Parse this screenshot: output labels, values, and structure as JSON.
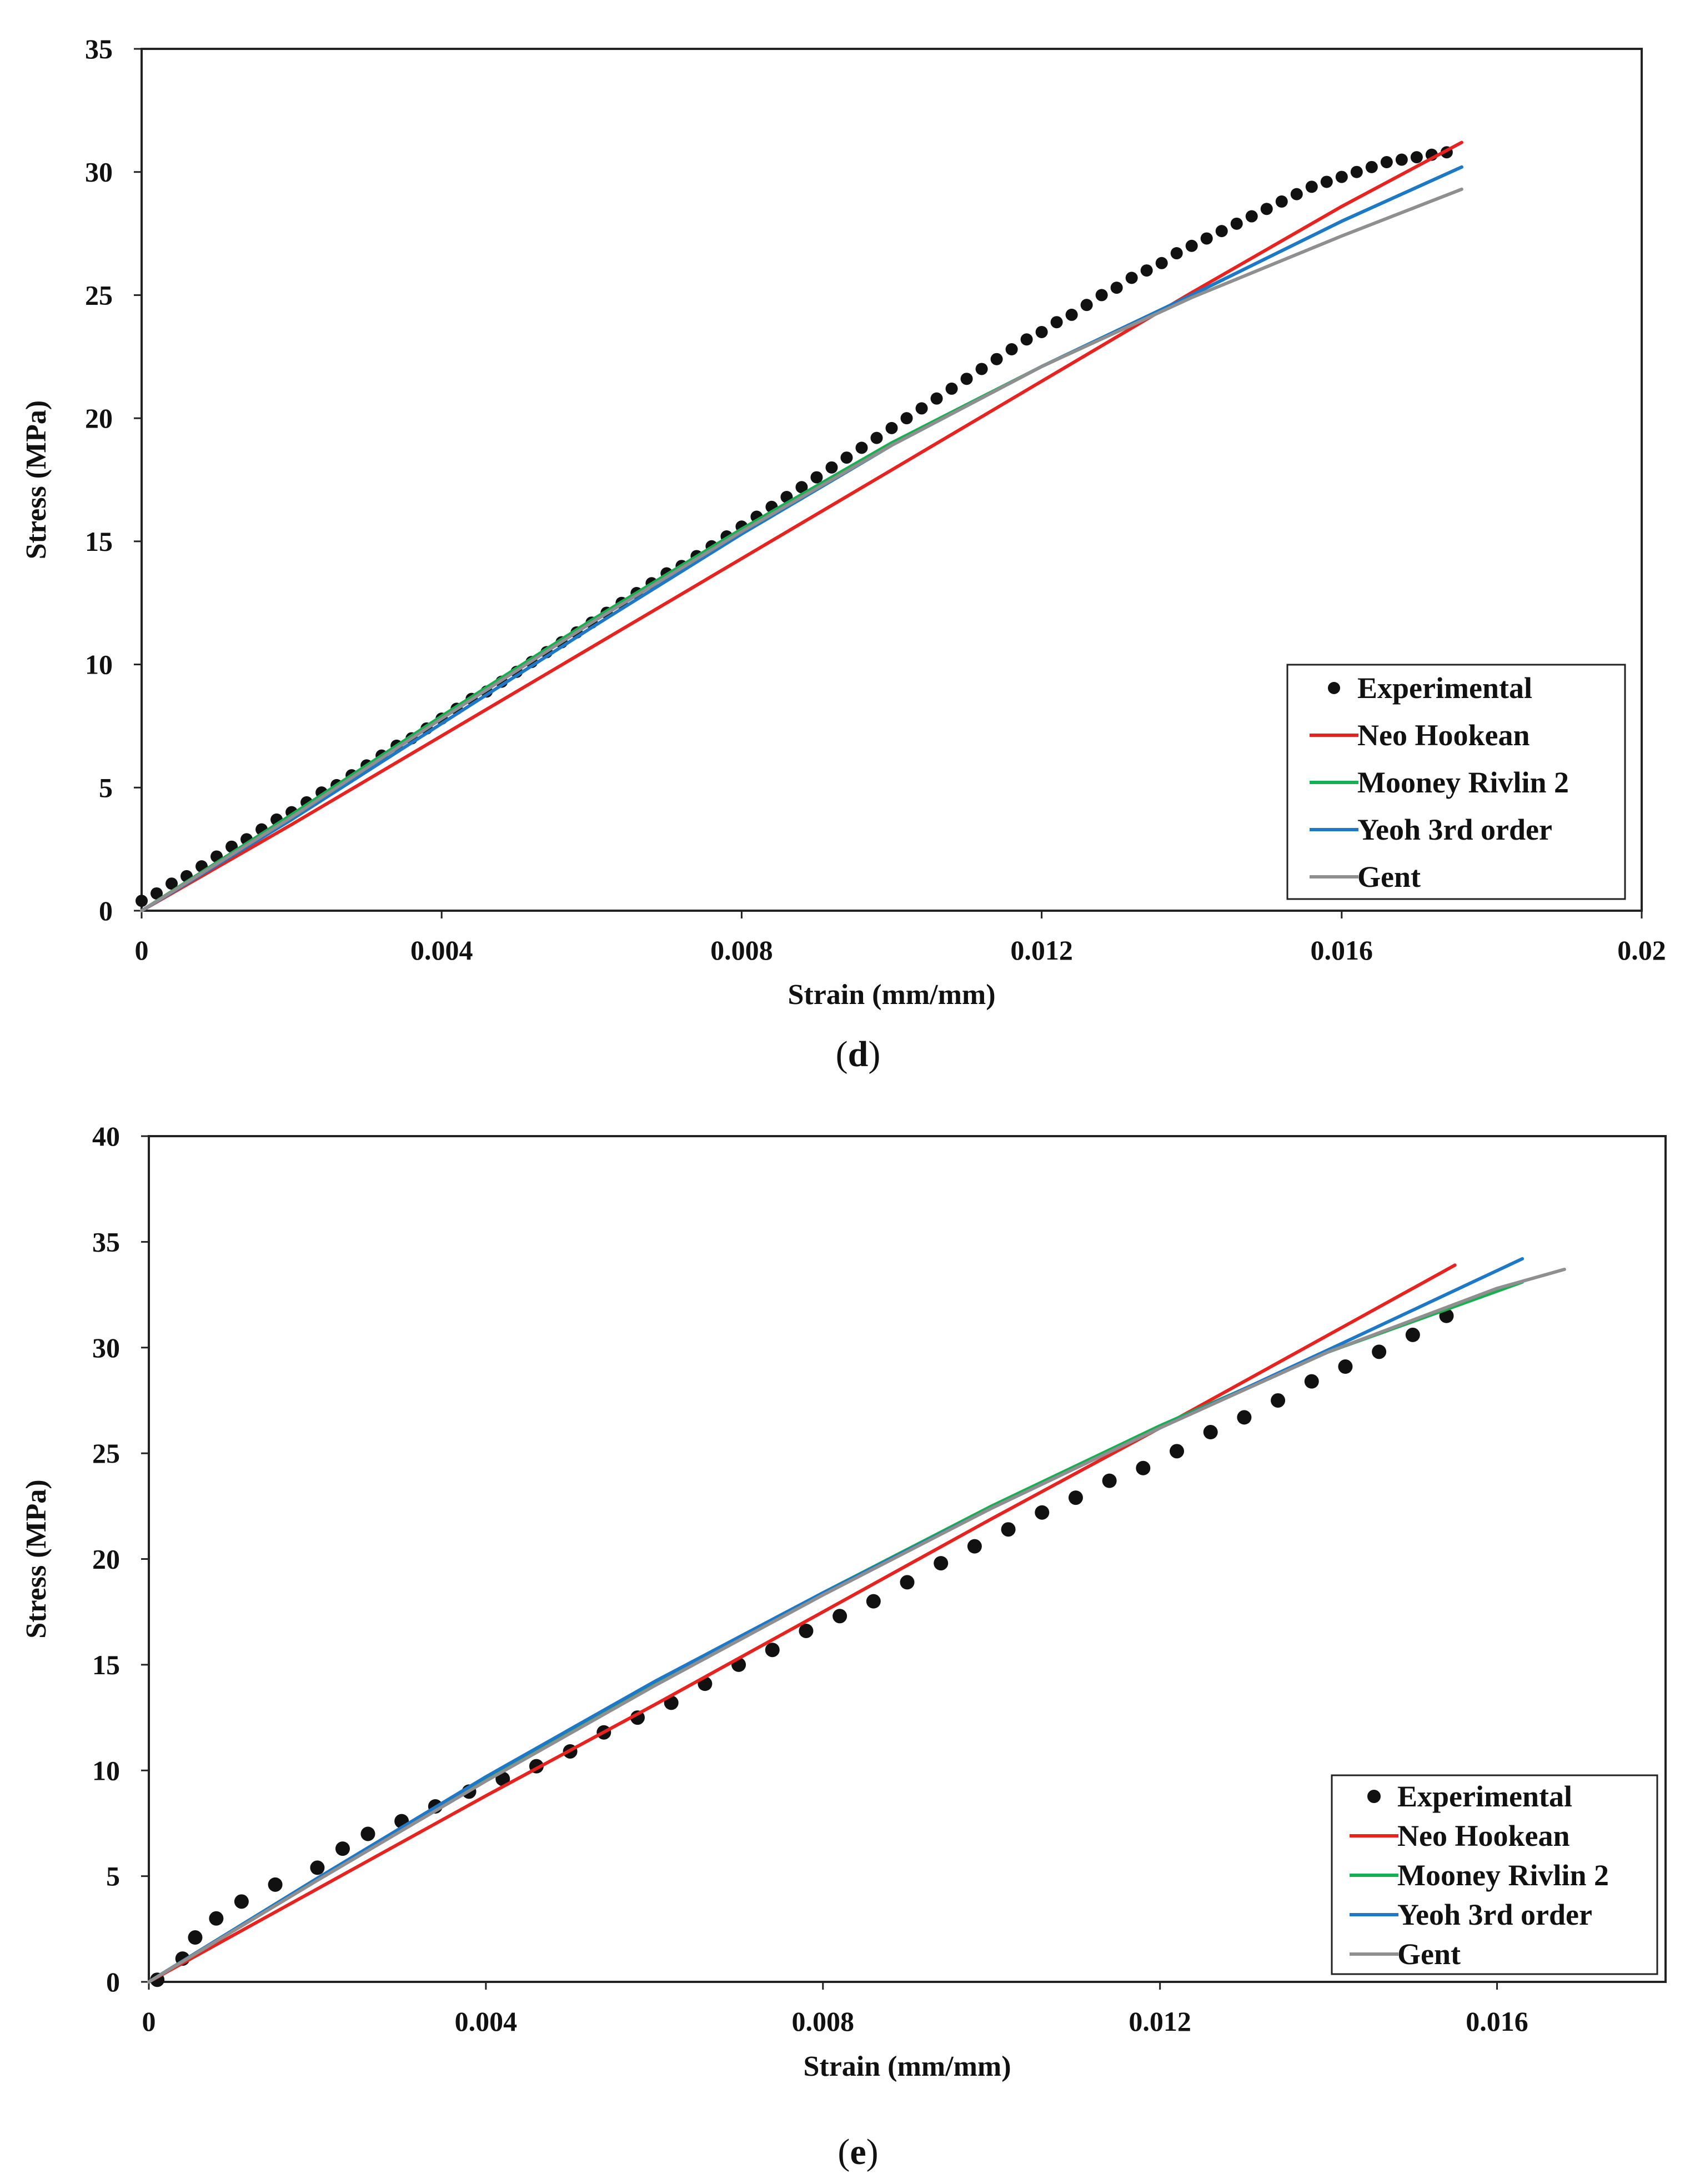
{
  "chart_data": [
    {
      "type": "line",
      "panel": "d",
      "caption_open": "(",
      "caption_letter": "d",
      "caption_close": ")",
      "title": "",
      "xlabel": "Strain (mm/mm)",
      "ylabel": "Stress (MPa)",
      "xlim": [
        0,
        0.02
      ],
      "ylim": [
        0,
        35
      ],
      "xticks": [
        0,
        0.004,
        0.008,
        0.012,
        0.016,
        0.02
      ],
      "xtick_labels": [
        "0",
        "0.004",
        "0.008",
        "0.012",
        "0.016",
        "0.02"
      ],
      "yticks": [
        0,
        5,
        10,
        15,
        20,
        25,
        30,
        35
      ],
      "ytick_labels": [
        "0",
        "5",
        "10",
        "15",
        "20",
        "25",
        "30",
        "35"
      ],
      "grid": false,
      "legend_position": "bottom-right",
      "series": [
        {
          "name": "Experimental",
          "kind": "scatter",
          "color": "#111111",
          "x": [
            0.0,
            0.0002,
            0.0004,
            0.0006,
            0.0008,
            0.001,
            0.0012,
            0.0014,
            0.0016,
            0.0018,
            0.002,
            0.0022,
            0.0024,
            0.0026,
            0.0028,
            0.003,
            0.0032,
            0.0034,
            0.0036,
            0.0038,
            0.004,
            0.0042,
            0.0044,
            0.0046,
            0.0048,
            0.005,
            0.0052,
            0.0054,
            0.0056,
            0.0058,
            0.006,
            0.0062,
            0.0064,
            0.0066,
            0.0068,
            0.007,
            0.0072,
            0.0074,
            0.0076,
            0.0078,
            0.008,
            0.0082,
            0.0084,
            0.0086,
            0.0088,
            0.009,
            0.0092,
            0.0094,
            0.0096,
            0.0098,
            0.01,
            0.0102,
            0.0104,
            0.0106,
            0.0108,
            0.011,
            0.0112,
            0.0114,
            0.0116,
            0.0118,
            0.012,
            0.0122,
            0.0124,
            0.0126,
            0.0128,
            0.013,
            0.0132,
            0.0134,
            0.0136,
            0.0138,
            0.014,
            0.0142,
            0.0144,
            0.0146,
            0.0148,
            0.015,
            0.0152,
            0.0154,
            0.0156,
            0.0158,
            0.016,
            0.0162,
            0.0164,
            0.0166,
            0.0168,
            0.017,
            0.0172,
            0.0174
          ],
          "y": [
            0.4,
            0.7,
            1.1,
            1.4,
            1.8,
            2.2,
            2.6,
            2.9,
            3.3,
            3.7,
            4.0,
            4.4,
            4.8,
            5.1,
            5.5,
            5.9,
            6.3,
            6.7,
            7.0,
            7.4,
            7.8,
            8.2,
            8.6,
            8.9,
            9.3,
            9.7,
            10.1,
            10.5,
            10.9,
            11.3,
            11.7,
            12.1,
            12.5,
            12.9,
            13.3,
            13.7,
            14.0,
            14.4,
            14.8,
            15.2,
            15.6,
            16.0,
            16.4,
            16.8,
            17.2,
            17.6,
            18.0,
            18.4,
            18.8,
            19.2,
            19.6,
            20.0,
            20.4,
            20.8,
            21.2,
            21.6,
            22.0,
            22.4,
            22.8,
            23.2,
            23.5,
            23.9,
            24.2,
            24.6,
            25.0,
            25.3,
            25.7,
            26.0,
            26.3,
            26.7,
            27.0,
            27.3,
            27.6,
            27.9,
            28.2,
            28.5,
            28.8,
            29.1,
            29.4,
            29.6,
            29.8,
            30.0,
            30.2,
            30.4,
            30.5,
            30.6,
            30.7,
            30.8
          ]
        },
        {
          "name": "Neo Hookean",
          "kind": "line",
          "color": "#e8231f",
          "x": [
            0,
            0.002,
            0.004,
            0.006,
            0.008,
            0.01,
            0.012,
            0.014,
            0.016,
            0.0176
          ],
          "y": [
            0,
            3.5,
            7.1,
            10.7,
            14.3,
            17.9,
            21.5,
            25.1,
            28.6,
            31.2
          ]
        },
        {
          "name": "Mooney Rivlin 2",
          "kind": "line",
          "color": "#15b050",
          "x": [
            0,
            0.002,
            0.004,
            0.006,
            0.008,
            0.01,
            0.012,
            0.014,
            0.016,
            0.0176
          ],
          "y": [
            0,
            3.9,
            7.9,
            11.8,
            15.5,
            19.0,
            22.1,
            25.0,
            28.0,
            30.2
          ]
        },
        {
          "name": "Yeoh 3rd order",
          "kind": "line",
          "color": "#1e78c8",
          "x": [
            0,
            0.002,
            0.004,
            0.006,
            0.008,
            0.01,
            0.012,
            0.014,
            0.016,
            0.0176
          ],
          "y": [
            0,
            3.7,
            7.6,
            11.5,
            15.3,
            18.9,
            22.1,
            25.0,
            28.0,
            30.2
          ]
        },
        {
          "name": "Gent",
          "kind": "line",
          "color": "#8f8f8f",
          "x": [
            0,
            0.002,
            0.004,
            0.006,
            0.008,
            0.01,
            0.012,
            0.014,
            0.016,
            0.0176
          ],
          "y": [
            0,
            3.8,
            7.8,
            11.7,
            15.4,
            18.9,
            22.1,
            24.9,
            27.4,
            29.3
          ]
        }
      ]
    },
    {
      "type": "line",
      "panel": "e",
      "caption_open": "(",
      "caption_letter": "e",
      "caption_close": ")",
      "title": "",
      "xlabel": "Strain (mm/mm)",
      "ylabel": "Stress (MPa)",
      "xlim": [
        0,
        0.018
      ],
      "ylim": [
        0,
        40
      ],
      "xticks": [
        0,
        0.004,
        0.008,
        0.012,
        0.016
      ],
      "xtick_labels": [
        "0",
        "0.004",
        "0.008",
        "0.012",
        "0.016"
      ],
      "yticks": [
        0,
        5,
        10,
        15,
        20,
        25,
        30,
        35,
        40
      ],
      "ytick_labels": [
        "0",
        "5",
        "10",
        "15",
        "20",
        "25",
        "30",
        "35",
        "40"
      ],
      "grid": false,
      "legend_position": "bottom-right",
      "series": [
        {
          "name": "Experimental",
          "kind": "scatter",
          "color": "#111111",
          "x": [
            0.0001,
            0.0004,
            0.00055,
            0.0008,
            0.0011,
            0.0015,
            0.002,
            0.0023,
            0.0026,
            0.003,
            0.0034,
            0.0038,
            0.0042,
            0.0046,
            0.005,
            0.0054,
            0.0058,
            0.0062,
            0.0066,
            0.007,
            0.0074,
            0.0078,
            0.0082,
            0.0086,
            0.009,
            0.0094,
            0.0098,
            0.0102,
            0.0106,
            0.011,
            0.0114,
            0.0118,
            0.0122,
            0.0126,
            0.013,
            0.0134,
            0.0138,
            0.0142,
            0.0146,
            0.015,
            0.0154
          ],
          "y": [
            0.1,
            1.1,
            2.1,
            3.0,
            3.8,
            4.6,
            5.4,
            6.3,
            7.0,
            7.6,
            8.3,
            9.0,
            9.6,
            10.2,
            10.9,
            11.8,
            12.5,
            13.2,
            14.1,
            15.0,
            15.7,
            16.6,
            17.3,
            18.0,
            18.9,
            19.8,
            20.6,
            21.4,
            22.2,
            22.9,
            23.7,
            24.3,
            25.1,
            26.0,
            26.7,
            27.5,
            28.4,
            29.1,
            29.8,
            30.6,
            31.5
          ]
        },
        {
          "name": "Neo Hookean",
          "kind": "line",
          "color": "#e8231f",
          "x": [
            0,
            0.002,
            0.004,
            0.006,
            0.008,
            0.01,
            0.012,
            0.014,
            0.0155
          ],
          "y": [
            0,
            4.4,
            8.8,
            13.1,
            17.5,
            21.9,
            26.2,
            30.6,
            33.9
          ]
        },
        {
          "name": "Mooney Rivlin 2",
          "kind": "line",
          "color": "#15b050",
          "x": [
            0,
            0.002,
            0.004,
            0.006,
            0.008,
            0.01,
            0.012,
            0.014,
            0.0163
          ],
          "y": [
            0,
            4.9,
            9.6,
            14.1,
            18.4,
            22.5,
            26.3,
            29.8,
            33.1
          ]
        },
        {
          "name": "Yeoh 3rd order",
          "kind": "line",
          "color": "#1e78c8",
          "x": [
            0,
            0.002,
            0.004,
            0.006,
            0.008,
            0.01,
            0.012,
            0.014,
            0.0163
          ],
          "y": [
            0,
            4.9,
            9.7,
            14.2,
            18.4,
            22.4,
            26.2,
            29.9,
            34.2
          ]
        },
        {
          "name": "Gent",
          "kind": "line",
          "color": "#8f8f8f",
          "x": [
            0,
            0.002,
            0.004,
            0.006,
            0.008,
            0.01,
            0.012,
            0.014,
            0.016,
            0.0168
          ],
          "y": [
            0,
            4.8,
            9.5,
            14.0,
            18.3,
            22.4,
            26.2,
            29.8,
            32.8,
            33.7
          ]
        }
      ]
    }
  ]
}
